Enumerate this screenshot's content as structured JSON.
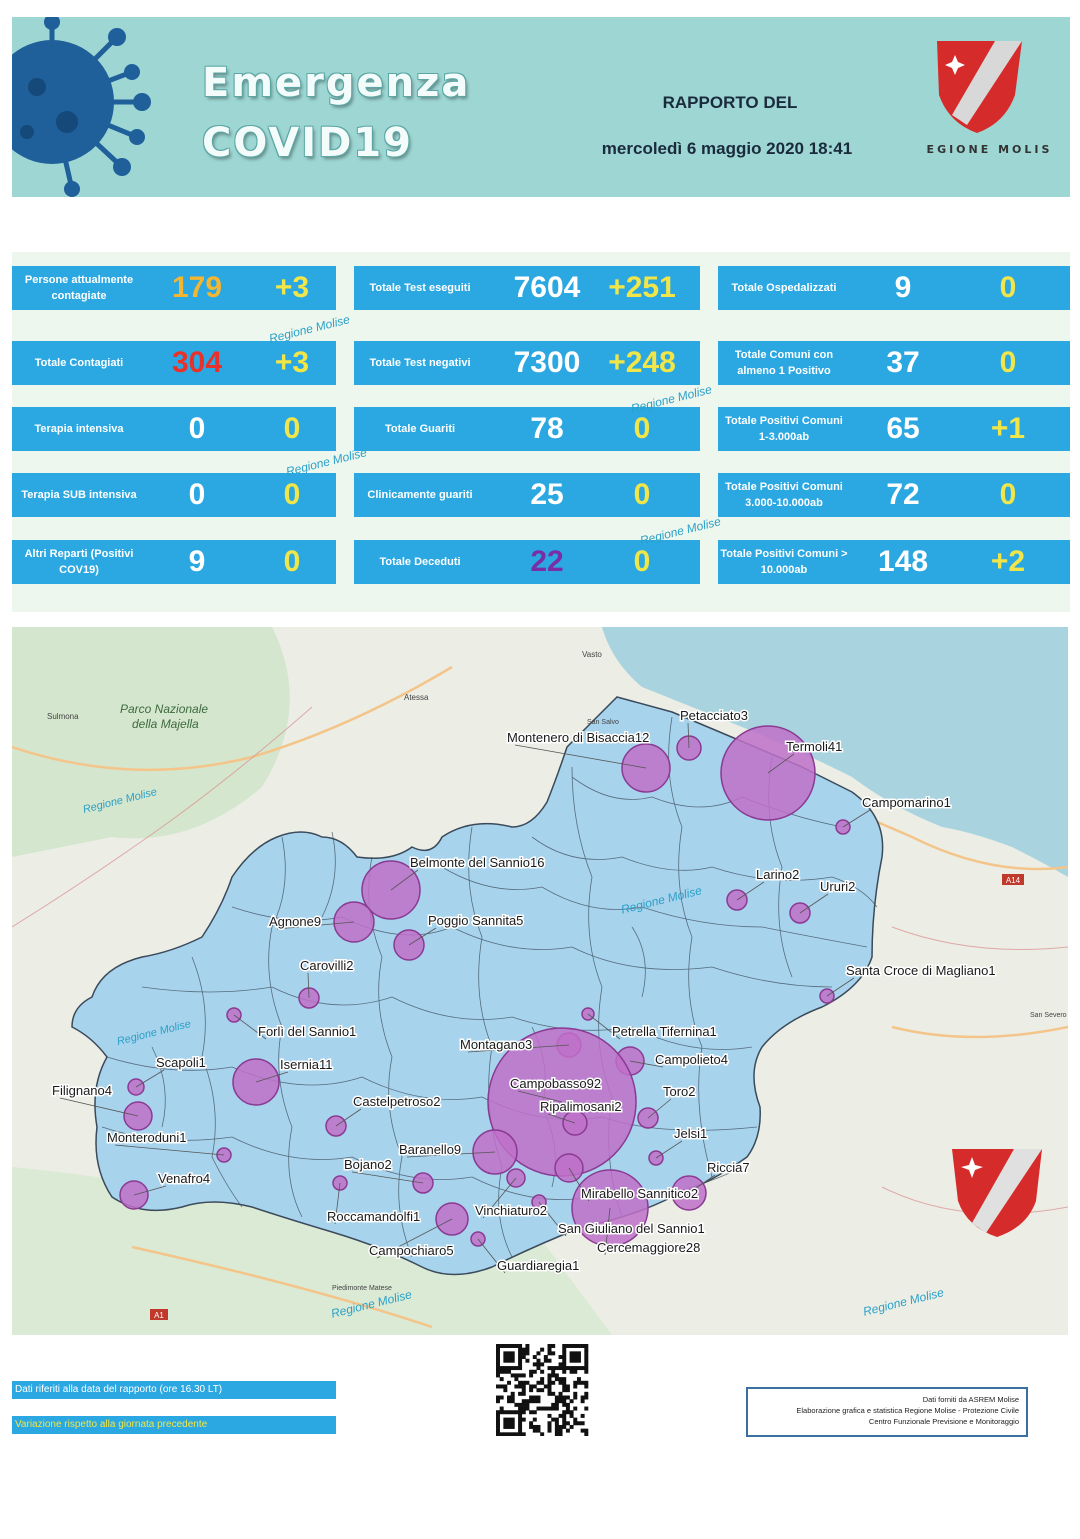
{
  "header": {
    "title_line1": "Emergenza",
    "title_line2": "COVID19",
    "report_label": "RAPPORTO DEL",
    "report_date": "mercoledì 6 maggio 2020 18:41",
    "logo_text": "REGIONE MOLISE"
  },
  "colors": {
    "header_bg": "#9dd6d3",
    "card_bg": "#2ba8e2",
    "value_white": "#ffffff",
    "change_yellow": "#f0e64a",
    "active_orange": "#f2b632",
    "total_red": "#e8312a",
    "deaths_purple": "#7a2ea6",
    "map_region": "#a8d3ec",
    "bubble": "#c070c8"
  },
  "stats": {
    "col1": [
      {
        "label": "Persone attualmente contagiate",
        "value": "179",
        "change": "+3"
      },
      {
        "label": "Totale Contagiati",
        "value": "304",
        "change": "+3"
      },
      {
        "label": "Terapia  intensiva",
        "value": "0",
        "change": "0"
      },
      {
        "label": "Terapia SUB intensiva",
        "value": "0",
        "change": "0"
      },
      {
        "label": "Altri Reparti (Positivi COV19)",
        "value": "9",
        "change": "0"
      }
    ],
    "col2": [
      {
        "label": "Totale Test eseguiti",
        "value": "7604",
        "change": "+251"
      },
      {
        "label": "Totale Test negativi",
        "value": "7300",
        "change": "+248"
      },
      {
        "label": "Totale Guariti",
        "value": "78",
        "change": "0"
      },
      {
        "label": "Clinicamente guariti",
        "value": "25",
        "change": "0"
      },
      {
        "label": "Totale Deceduti",
        "value": "22",
        "change": "0"
      }
    ],
    "col3": [
      {
        "label": "Totale Ospedalizzati",
        "value": "9",
        "change": "0"
      },
      {
        "label": "Totale Comuni con almeno 1 Positivo",
        "value": "37",
        "change": "0"
      },
      {
        "label": "Totale Positivi Comuni 1-3.000ab",
        "value": "65",
        "change": "+1"
      },
      {
        "label": "Totale Positivi Comuni 3.000-10.000ab",
        "value": "72",
        "change": "0"
      },
      {
        "label": "Totale Positivi Comuni > 10.000ab",
        "value": "148",
        "change": "+2"
      }
    ]
  },
  "watermark": "Regione Molise",
  "map": {
    "places": [
      {
        "name": "Petacciato3"
      },
      {
        "name": "Montenero di Bisaccia12"
      },
      {
        "name": "Termoli41"
      },
      {
        "name": "Campomarino1"
      },
      {
        "name": "Larino2"
      },
      {
        "name": "Ururi2"
      },
      {
        "name": "Belmonte del Sannio16"
      },
      {
        "name": "Agnone9"
      },
      {
        "name": "Poggio Sannita5"
      },
      {
        "name": "Carovilli2"
      },
      {
        "name": "Santa Croce di Magliano1"
      },
      {
        "name": "Forlì del Sannio1"
      },
      {
        "name": "Petrella Tifernina1"
      },
      {
        "name": "Montagano3"
      },
      {
        "name": "Campolieto4"
      },
      {
        "name": "Scapoli1"
      },
      {
        "name": "Isernia11"
      },
      {
        "name": "Campobasso92"
      },
      {
        "name": "Filignano4"
      },
      {
        "name": "Toro2"
      },
      {
        "name": "Ripalimosani2"
      },
      {
        "name": "Castelpetroso2"
      },
      {
        "name": "Monteroduni1"
      },
      {
        "name": "Jelsi1"
      },
      {
        "name": "Baranello9"
      },
      {
        "name": "Riccia7"
      },
      {
        "name": "Bojano2"
      },
      {
        "name": "Venafro4"
      },
      {
        "name": "Mirabello Sannitico2"
      },
      {
        "name": "Roccamandolfi1"
      },
      {
        "name": "Vinchiaturo2"
      },
      {
        "name": "San Giuliano del Sannio1"
      },
      {
        "name": "Cercemaggiore28"
      },
      {
        "name": "Campochiaro5"
      },
      {
        "name": "Guardiaregia1"
      }
    ],
    "background_labels": {
      "park": "Parco Nazionale della Majella",
      "sea_label": "Vasto",
      "road": "A14",
      "road2": "A1",
      "town1": "Sulmona",
      "town2": "Atessa",
      "town3": "San Salvo",
      "town4": "San Severo",
      "town5": "Piedimonte Matese"
    }
  },
  "footer": {
    "legend_data_text": "Dati riferiti alla data del rapporto  (ore 16.30 LT)",
    "legend_change_text": "Variazione rispetto alla giornata precedente",
    "source_line1": "Dati forniti da ASREM Molise",
    "source_line2": "Elaborazione grafica e statistica Regione Molise - Protezione Civile",
    "source_line3": "Centro Funzionale Previsione e Monitoraggio"
  }
}
